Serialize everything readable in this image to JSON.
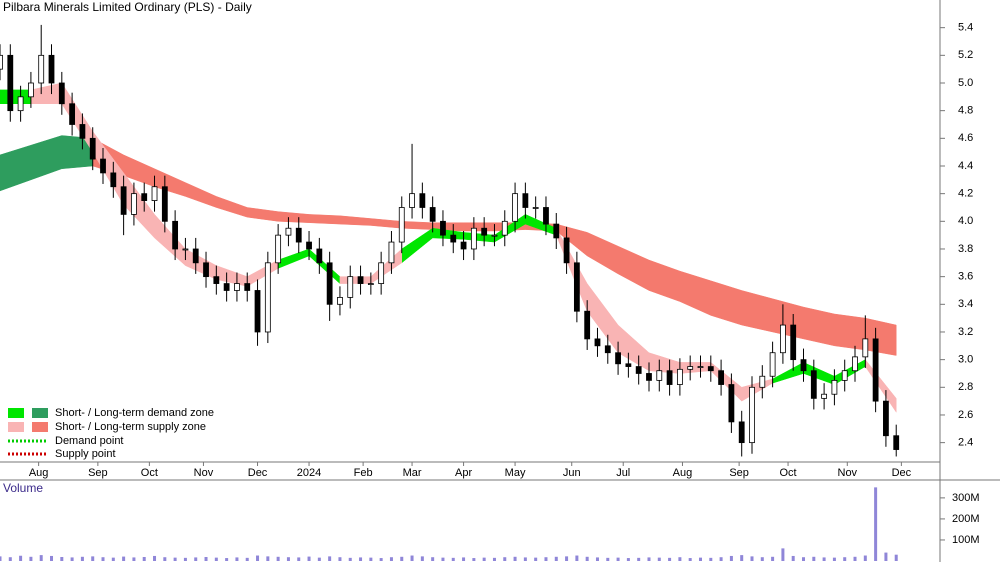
{
  "chart_data": [
    {
      "type": "candlestick",
      "title": "Pilbara Minerals Limited Ordinary (PLS) - Daily",
      "xlim": [
        0,
        365
      ],
      "xticks": [
        {
          "value": 15,
          "label": "Aug"
        },
        {
          "value": 38,
          "label": "Sep"
        },
        {
          "value": 58,
          "label": "Oct"
        },
        {
          "value": 79,
          "label": "Nov"
        },
        {
          "value": 100,
          "label": "Dec"
        },
        {
          "value": 120,
          "label": "2024"
        },
        {
          "value": 141,
          "label": "Feb"
        },
        {
          "value": 160,
          "label": "Mar"
        },
        {
          "value": 180,
          "label": "Apr"
        },
        {
          "value": 200,
          "label": "May"
        },
        {
          "value": 222,
          "label": "Jun"
        },
        {
          "value": 242,
          "label": "Jul"
        },
        {
          "value": 265,
          "label": "Aug"
        },
        {
          "value": 287,
          "label": "Sep"
        },
        {
          "value": 306,
          "label": "Oct"
        },
        {
          "value": 329,
          "label": "Nov"
        },
        {
          "value": 350,
          "label": "Dec"
        }
      ],
      "ylim": [
        2.26,
        5.6
      ],
      "yticks": [
        2.4,
        2.6,
        2.8,
        {
          "value": 3,
          "label": "3.0"
        },
        3.2,
        3.4,
        3.6,
        3.8,
        {
          "value": 4,
          "label": "4.0"
        },
        4.2,
        4.4,
        4.6,
        4.8,
        {
          "value": 5,
          "label": "5.0"
        },
        5.2,
        5.4
      ],
      "x": [
        0,
        4,
        8,
        12,
        16,
        20,
        24,
        28,
        32,
        36,
        40,
        44,
        48,
        52,
        56,
        60,
        64,
        68,
        72,
        76,
        80,
        84,
        88,
        92,
        96,
        100,
        104,
        108,
        112,
        116,
        120,
        124,
        128,
        132,
        136,
        140,
        144,
        148,
        152,
        156,
        160,
        164,
        168,
        172,
        176,
        180,
        184,
        188,
        192,
        196,
        200,
        204,
        208,
        212,
        216,
        220,
        224,
        228,
        232,
        236,
        240,
        244,
        248,
        252,
        256,
        260,
        264,
        268,
        272,
        276,
        280,
        284,
        288,
        292,
        296,
        300,
        304,
        308,
        312,
        316,
        320,
        324,
        328,
        332,
        336,
        340,
        344,
        348
      ],
      "open": [
        5.1,
        5.2,
        4.8,
        4.9,
        5.0,
        5.2,
        5.0,
        4.85,
        4.7,
        4.6,
        4.45,
        4.35,
        4.25,
        4.05,
        4.2,
        4.15,
        4.25,
        4.0,
        3.8,
        3.8,
        3.7,
        3.6,
        3.55,
        3.5,
        3.55,
        3.5,
        3.2,
        3.7,
        3.9,
        3.95,
        3.85,
        3.8,
        3.7,
        3.4,
        3.45,
        3.6,
        3.55,
        3.55,
        3.7,
        3.85,
        4.1,
        4.2,
        4.1,
        4.0,
        3.9,
        3.85,
        3.8,
        3.95,
        3.9,
        3.9,
        4.0,
        4.2,
        4.1,
        4.1,
        3.98,
        3.88,
        3.7,
        3.35,
        3.15,
        3.1,
        3.05,
        2.97,
        2.95,
        2.9,
        2.85,
        2.92,
        2.82,
        2.93,
        2.95,
        2.95,
        2.92,
        2.82,
        2.55,
        2.4,
        2.8,
        2.88,
        3.05,
        3.25,
        3.0,
        2.92,
        2.72,
        2.75,
        2.85,
        2.92,
        3.02,
        3.15,
        2.7,
        2.45
      ],
      "high": [
        5.28,
        5.28,
        4.98,
        5.08,
        5.42,
        5.28,
        5.08,
        4.93,
        4.78,
        4.68,
        4.53,
        4.43,
        4.33,
        4.28,
        4.28,
        4.33,
        4.33,
        4.08,
        3.88,
        3.88,
        3.78,
        3.68,
        3.63,
        3.63,
        3.63,
        3.58,
        3.78,
        3.98,
        4.03,
        4.03,
        3.93,
        3.88,
        3.78,
        3.53,
        3.68,
        3.68,
        3.63,
        3.78,
        3.93,
        4.18,
        4.56,
        4.28,
        4.18,
        4.08,
        3.98,
        3.93,
        4.03,
        4.03,
        3.98,
        4.08,
        4.28,
        4.28,
        4.18,
        4.18,
        4.06,
        3.96,
        3.78,
        3.43,
        3.23,
        3.18,
        3.13,
        3.05,
        3.03,
        2.98,
        3.0,
        3.0,
        3.01,
        3.03,
        3.03,
        3.03,
        3.0,
        2.9,
        2.63,
        2.88,
        2.96,
        3.13,
        3.4,
        3.33,
        3.08,
        3.0,
        2.83,
        2.93,
        3.0,
        3.1,
        3.32,
        3.23,
        2.78,
        2.53
      ],
      "low": [
        5.02,
        4.72,
        4.72,
        4.82,
        4.92,
        4.92,
        4.77,
        4.62,
        4.52,
        4.37,
        4.27,
        4.17,
        3.9,
        3.97,
        4.07,
        4.07,
        3.92,
        3.72,
        3.72,
        3.62,
        3.52,
        3.47,
        3.42,
        3.42,
        3.42,
        3.1,
        3.12,
        3.62,
        3.82,
        3.77,
        3.72,
        3.62,
        3.28,
        3.32,
        3.37,
        3.47,
        3.47,
        3.47,
        3.62,
        3.77,
        4.02,
        4.02,
        3.92,
        3.82,
        3.77,
        3.72,
        3.72,
        3.82,
        3.82,
        3.82,
        3.92,
        4.02,
        4.02,
        3.9,
        3.8,
        3.62,
        3.27,
        3.07,
        3.02,
        2.97,
        2.89,
        2.87,
        2.82,
        2.77,
        2.77,
        2.74,
        2.74,
        2.85,
        2.87,
        2.84,
        2.74,
        2.47,
        2.3,
        2.32,
        2.72,
        2.8,
        2.97,
        2.92,
        2.84,
        2.64,
        2.64,
        2.67,
        2.77,
        2.84,
        2.94,
        2.62,
        2.37,
        2.3
      ],
      "close": [
        5.2,
        4.8,
        4.9,
        5.0,
        5.2,
        5.0,
        4.85,
        4.7,
        4.6,
        4.45,
        4.35,
        4.25,
        4.05,
        4.2,
        4.15,
        4.25,
        4.0,
        3.8,
        3.8,
        3.7,
        3.6,
        3.55,
        3.5,
        3.55,
        3.5,
        3.2,
        3.7,
        3.9,
        3.95,
        3.85,
        3.8,
        3.7,
        3.4,
        3.45,
        3.6,
        3.55,
        3.55,
        3.7,
        3.85,
        4.1,
        4.2,
        4.1,
        4.0,
        3.9,
        3.85,
        3.8,
        3.95,
        3.9,
        3.9,
        4.0,
        4.2,
        4.1,
        4.1,
        3.98,
        3.88,
        3.7,
        3.35,
        3.15,
        3.1,
        3.05,
        2.97,
        2.95,
        2.9,
        2.85,
        2.92,
        2.82,
        2.93,
        2.95,
        2.95,
        2.92,
        2.82,
        2.55,
        2.4,
        2.8,
        2.88,
        3.05,
        3.25,
        3.0,
        2.92,
        2.72,
        2.75,
        2.85,
        2.92,
        3.02,
        3.15,
        2.7,
        2.45,
        2.35
      ],
      "band_x": [
        0,
        12,
        24,
        36,
        48,
        60,
        72,
        84,
        96,
        108,
        120,
        132,
        144,
        156,
        168,
        180,
        192,
        204,
        216,
        228,
        240,
        252,
        264,
        276,
        288,
        300,
        312,
        324,
        336,
        348
      ],
      "zones": [
        {
          "label": "Short- / Long-term demand zone",
          "short": {
            "color": "#00e600",
            "upper": [
              4.95,
              4.95,
              null,
              null,
              null,
              null,
              null,
              null,
              null,
              3.72,
              3.8,
              3.6,
              null,
              3.8,
              3.95,
              3.92,
              3.9,
              4.05,
              3.95,
              null,
              null,
              null,
              null,
              null,
              null,
              2.86,
              2.98,
              2.88,
              3.0,
              null
            ],
            "lower": [
              4.85,
              4.85,
              null,
              null,
              null,
              null,
              null,
              null,
              null,
              3.66,
              3.75,
              3.55,
              null,
              3.7,
              3.88,
              3.87,
              3.85,
              3.98,
              3.9,
              null,
              null,
              null,
              null,
              null,
              null,
              2.83,
              2.9,
              2.82,
              2.95,
              null
            ]
          },
          "long": {
            "color": "#2e9d5e",
            "upper": [
              4.48,
              4.55,
              4.62,
              4.6,
              null,
              null,
              null,
              null,
              null,
              null,
              null,
              null,
              null,
              null,
              null,
              null,
              null,
              null,
              null,
              null,
              null,
              null,
              null,
              null,
              null,
              null,
              null,
              null,
              null,
              null
            ],
            "lower": [
              4.22,
              4.3,
              4.38,
              4.4,
              null,
              null,
              null,
              null,
              null,
              null,
              null,
              null,
              null,
              null,
              null,
              null,
              null,
              null,
              null,
              null,
              null,
              null,
              null,
              null,
              null,
              null,
              null,
              null,
              null,
              null
            ]
          }
        },
        {
          "label": "Short- / Long-term supply zone",
          "short": {
            "color": "#f9b4b4",
            "upper": [
              null,
              4.95,
              5.0,
              4.65,
              4.35,
              4.05,
              3.8,
              3.68,
              3.6,
              3.72,
              null,
              3.6,
              3.6,
              3.8,
              null,
              null,
              null,
              null,
              3.95,
              3.55,
              3.25,
              3.05,
              2.98,
              2.98,
              2.8,
              2.86,
              null,
              null,
              3.0,
              2.72
            ],
            "lower": [
              null,
              4.85,
              4.85,
              4.5,
              4.12,
              3.88,
              3.68,
              3.58,
              3.53,
              3.66,
              null,
              3.55,
              3.55,
              3.7,
              null,
              null,
              null,
              null,
              3.9,
              3.35,
              3.05,
              2.92,
              2.9,
              2.92,
              2.7,
              2.83,
              null,
              null,
              2.95,
              2.62
            ]
          },
          "long": {
            "color": "#f47a6e",
            "upper": [
              null,
              null,
              null,
              4.6,
              4.48,
              4.38,
              4.28,
              4.18,
              4.1,
              4.07,
              4.05,
              4.04,
              4.02,
              4.0,
              3.99,
              3.99,
              3.99,
              3.99,
              3.98,
              3.92,
              3.82,
              3.72,
              3.64,
              3.57,
              3.5,
              3.44,
              3.38,
              3.33,
              3.3,
              3.25
            ],
            "lower": [
              null,
              null,
              null,
              4.4,
              4.33,
              4.25,
              4.18,
              4.1,
              4.03,
              4.0,
              3.99,
              3.98,
              3.97,
              3.95,
              3.94,
              3.93,
              3.93,
              3.94,
              3.93,
              3.75,
              3.62,
              3.5,
              3.42,
              3.32,
              3.25,
              3.2,
              3.15,
              3.1,
              3.07,
              3.03
            ]
          }
        }
      ],
      "points": [
        {
          "label": "Demand point",
          "color": "#00cc00"
        },
        {
          "label": "Supply point",
          "color": "#cc0000"
        }
      ]
    },
    {
      "type": "bar",
      "title": "Volume",
      "color": "#8f86d8",
      "xlim": [
        0,
        365
      ],
      "ylim": [
        0,
        385
      ],
      "yticks": [
        {
          "value": 100,
          "label": "100M"
        },
        {
          "value": 200,
          "label": "200M"
        },
        {
          "value": 300,
          "label": "300M"
        }
      ],
      "x": [
        0,
        4,
        8,
        12,
        16,
        20,
        24,
        28,
        32,
        36,
        40,
        44,
        48,
        52,
        56,
        60,
        64,
        68,
        72,
        76,
        80,
        84,
        88,
        92,
        96,
        100,
        104,
        108,
        112,
        116,
        120,
        124,
        128,
        132,
        136,
        140,
        144,
        148,
        152,
        156,
        160,
        164,
        168,
        172,
        176,
        180,
        184,
        188,
        192,
        196,
        200,
        204,
        208,
        212,
        216,
        220,
        224,
        228,
        232,
        236,
        240,
        244,
        248,
        252,
        256,
        260,
        264,
        268,
        272,
        276,
        280,
        284,
        288,
        292,
        296,
        300,
        304,
        308,
        312,
        316,
        320,
        324,
        328,
        332,
        336,
        340,
        344,
        348
      ],
      "values": [
        22,
        18,
        25,
        20,
        28,
        24,
        19,
        17,
        20,
        22,
        18,
        16,
        21,
        17,
        19,
        24,
        18,
        16,
        15,
        17,
        19,
        16,
        14,
        17,
        15,
        26,
        22,
        20,
        18,
        17,
        21,
        16,
        22,
        18,
        15,
        17,
        16,
        14,
        18,
        20,
        26,
        22,
        18,
        16,
        15,
        17,
        14,
        16,
        15,
        18,
        20,
        17,
        16,
        18,
        20,
        22,
        26,
        20,
        17,
        15,
        16,
        14,
        15,
        17,
        16,
        15,
        18,
        14,
        16,
        15,
        18,
        24,
        28,
        22,
        18,
        20,
        60,
        24,
        18,
        20,
        17,
        16,
        18,
        20,
        26,
        350,
        40,
        30
      ]
    }
  ]
}
